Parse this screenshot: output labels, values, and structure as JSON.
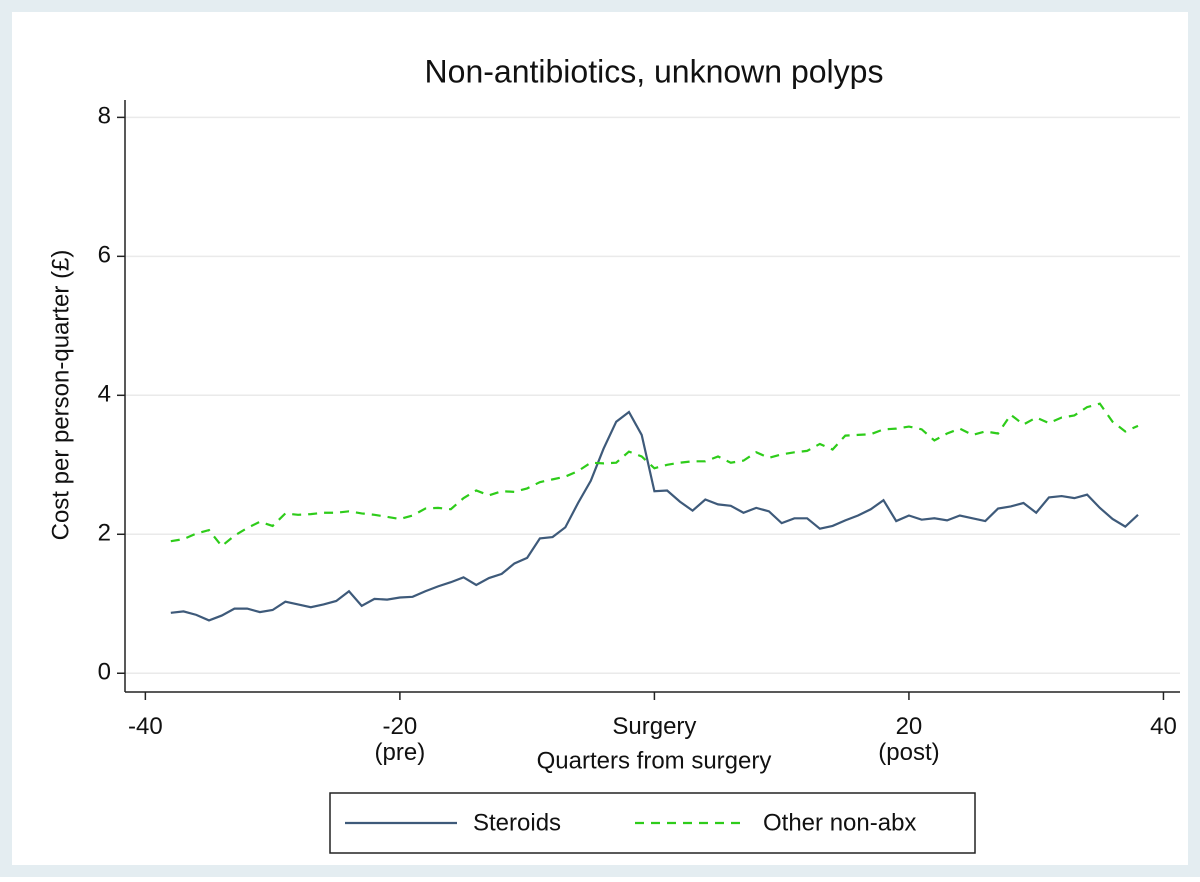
{
  "chart_data": {
    "type": "line",
    "title": "Non-antibiotics, unknown polyps",
    "x_label": "Quarters from surgery",
    "y_label": "Cost per person-quarter (£)",
    "x": [
      -38,
      -37,
      -36,
      -35,
      -34,
      -33,
      -32,
      -31,
      -30,
      -29,
      -28,
      -27,
      -26,
      -25,
      -24,
      -23,
      -22,
      -21,
      -20,
      -19,
      -18,
      -17,
      -16,
      -15,
      -14,
      -13,
      -12,
      -11,
      -10,
      -9,
      -8,
      -7,
      -6,
      -5,
      -4,
      -3,
      -2,
      -1,
      0,
      1,
      2,
      3,
      4,
      5,
      6,
      7,
      8,
      9,
      10,
      11,
      12,
      13,
      14,
      15,
      16,
      17,
      18,
      19,
      20,
      21,
      22,
      23,
      24,
      25,
      26,
      27,
      28,
      29,
      30,
      31,
      32,
      33,
      34,
      35,
      36,
      37,
      38
    ],
    "series": [
      {
        "name": "Steroids",
        "color": "#3e5a7a",
        "dash": "none",
        "values": [
          0.87,
          0.89,
          0.84,
          0.76,
          0.83,
          0.93,
          0.93,
          0.88,
          0.91,
          1.03,
          0.99,
          0.95,
          0.99,
          1.04,
          1.18,
          0.97,
          1.07,
          1.06,
          1.09,
          1.1,
          1.18,
          1.25,
          1.31,
          1.38,
          1.27,
          1.37,
          1.43,
          1.58,
          1.66,
          1.94,
          1.96,
          2.1,
          2.45,
          2.77,
          3.23,
          3.62,
          3.76,
          3.43,
          2.62,
          2.63,
          2.47,
          2.34,
          2.5,
          2.43,
          2.41,
          2.31,
          2.38,
          2.33,
          2.16,
          2.23,
          2.23,
          2.08,
          2.12,
          2.2,
          2.27,
          2.36,
          2.49,
          2.19,
          2.27,
          2.21,
          2.23,
          2.2,
          2.27,
          2.23,
          2.19,
          2.37,
          2.4,
          2.45,
          2.31,
          2.53,
          2.55,
          2.52,
          2.57,
          2.38,
          2.22,
          2.11,
          2.28
        ]
      },
      {
        "name": "Other non-abx",
        "color": "#2ecc1a",
        "dash": "9 7",
        "values": [
          1.9,
          1.93,
          2.01,
          2.06,
          1.83,
          1.98,
          2.09,
          2.18,
          2.12,
          2.3,
          2.28,
          2.29,
          2.31,
          2.31,
          2.33,
          2.3,
          2.28,
          2.25,
          2.22,
          2.27,
          2.37,
          2.38,
          2.36,
          2.52,
          2.63,
          2.56,
          2.62,
          2.61,
          2.66,
          2.75,
          2.79,
          2.83,
          2.91,
          3.03,
          3.02,
          3.03,
          3.19,
          3.12,
          2.95,
          3.0,
          3.03,
          3.05,
          3.05,
          3.12,
          3.03,
          3.06,
          3.18,
          3.1,
          3.15,
          3.18,
          3.2,
          3.3,
          3.22,
          3.42,
          3.43,
          3.44,
          3.51,
          3.52,
          3.55,
          3.51,
          3.35,
          3.45,
          3.52,
          3.43,
          3.48,
          3.45,
          3.72,
          3.58,
          3.68,
          3.6,
          3.68,
          3.71,
          3.83,
          3.88,
          3.62,
          3.48,
          3.56
        ]
      }
    ],
    "xlim": [
      -41.6,
      41.3
    ],
    "ylim": [
      -0.27,
      8.25
    ],
    "xticks": [
      -40,
      {
        "value": -20,
        "label": "-20\n(pre)"
      },
      {
        "value": 0,
        "label": "Surgery"
      },
      {
        "value": 20,
        "label": "20\n(post)"
      },
      40
    ],
    "yticks": [
      0,
      2,
      4,
      6,
      8
    ],
    "grid": true,
    "legend": "bottom"
  }
}
